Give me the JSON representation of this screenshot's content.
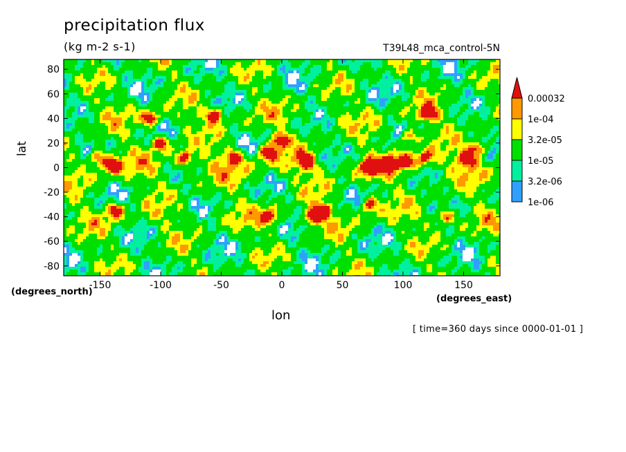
{
  "chart_data": {
    "type": "heatmap",
    "title": "precipitation flux",
    "units": "(kg m-2 s-1)",
    "run_label": "T39L48_mca_control-5N",
    "xlabel": "lon",
    "ylabel": "lat",
    "x_units": "(degrees_east)",
    "y_units": "(degrees_north)",
    "time_label": "[ time=360 days since 0000-01-01 ]",
    "xlim": [
      -180,
      180
    ],
    "ylim": [
      -88,
      88
    ],
    "x_ticks": [
      -150,
      -100,
      -50,
      0,
      50,
      100,
      150
    ],
    "y_ticks": [
      -80,
      -60,
      -40,
      -20,
      0,
      20,
      40,
      60,
      80
    ],
    "legend": {
      "placement": "right",
      "levels": [
        "0.00032",
        "1e-04",
        "3.2e-05",
        "1e-05",
        "3.2e-06",
        "1e-06"
      ],
      "colors": [
        "#e01010",
        "#ff9900",
        "#ffff00",
        "#00e000",
        "#00f0a0",
        "#30a0ff"
      ],
      "below_color": "#ffffff",
      "extend": "max"
    },
    "heavy_precip_centers": [
      {
        "lon": -152,
        "lat": 8
      },
      {
        "lon": -140,
        "lat": 2
      },
      {
        "lon": -100,
        "lat": 20
      },
      {
        "lon": -80,
        "lat": 8
      },
      {
        "lon": -108,
        "lat": 40
      },
      {
        "lon": -55,
        "lat": 43
      },
      {
        "lon": -40,
        "lat": 8
      },
      {
        "lon": -12,
        "lat": 12
      },
      {
        "lon": -2,
        "lat": 22
      },
      {
        "lon": 20,
        "lat": 5
      },
      {
        "lon": 72,
        "lat": 0
      },
      {
        "lon": 88,
        "lat": 3
      },
      {
        "lon": 102,
        "lat": 5
      },
      {
        "lon": 118,
        "lat": 8
      },
      {
        "lon": 152,
        "lat": 7
      },
      {
        "lon": 162,
        "lat": 15
      },
      {
        "lon": 120,
        "lat": 44
      },
      {
        "lon": 105,
        "lat": 25
      },
      {
        "lon": 35,
        "lat": -35
      },
      {
        "lon": 72,
        "lat": -30
      },
      {
        "lon": -138,
        "lat": -35
      },
      {
        "lon": 25,
        "lat": -40
      },
      {
        "lon": -10,
        "lat": -40
      },
      {
        "lon": 135,
        "lat": -40
      }
    ]
  }
}
